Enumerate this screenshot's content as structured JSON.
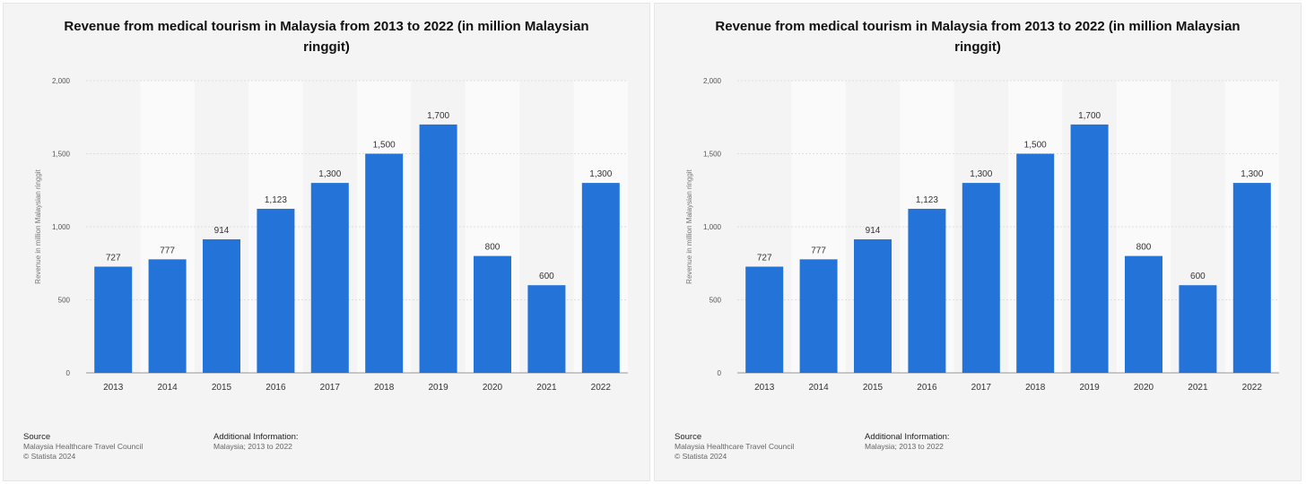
{
  "charts": [
    {
      "title": "Revenue from medical tourism in Malaysia from 2013 to 2022 (in million Malaysian ringgit)",
      "ylabel": "Revenue in million Malaysian ringgit",
      "source_header": "Source",
      "source_lines": [
        "Malaysia Healthcare Travel Council",
        "© Statista 2024"
      ],
      "additional_header": "Additional Information:",
      "additional_lines": [
        "Malaysia; 2013 to 2022"
      ]
    },
    {
      "title": "Revenue from medical tourism in Malaysia from 2013 to 2022 (in million Malaysian ringgit)",
      "ylabel": "Revenue in million Malaysian ringgit",
      "source_header": "Source",
      "source_lines": [
        "Malaysia Healthcare Travel Council",
        "© Statista 2024"
      ],
      "additional_header": "Additional Information:",
      "additional_lines": [
        "Malaysia; 2013 to 2022"
      ]
    }
  ],
  "colors": {
    "bar": "#2473d9",
    "band": "#fafafa",
    "grid": "#d6d6d6",
    "axis_text": "#555555",
    "label_text": "#333333"
  },
  "chart_data": [
    {
      "type": "bar",
      "title": "Revenue from medical tourism in Malaysia from 2013 to 2022 (in million Malaysian ringgit)",
      "xlabel": "",
      "ylabel": "Revenue in million Malaysian ringgit",
      "categories": [
        "2013",
        "2014",
        "2015",
        "2016",
        "2017",
        "2018",
        "2019",
        "2020",
        "2021",
        "2022"
      ],
      "values": [
        727,
        777,
        914,
        1123,
        1300,
        1500,
        1700,
        800,
        600,
        1300
      ],
      "value_labels": [
        "727",
        "777",
        "914",
        "1,123",
        "1,300",
        "1,500",
        "1,700",
        "800",
        "600",
        "1,300"
      ],
      "ylim": [
        0,
        2000
      ],
      "yticks": [
        0,
        500,
        1000,
        1500,
        2000
      ],
      "ytick_labels": [
        "0",
        "500",
        "1,000",
        "1,500",
        "2,000"
      ],
      "grid": true,
      "legend": "none"
    },
    {
      "type": "bar",
      "title": "Revenue from medical tourism in Malaysia from 2013 to 2022 (in million Malaysian ringgit)",
      "xlabel": "",
      "ylabel": "Revenue in million Malaysian ringgit",
      "categories": [
        "2013",
        "2014",
        "2015",
        "2016",
        "2017",
        "2018",
        "2019",
        "2020",
        "2021",
        "2022"
      ],
      "values": [
        727,
        777,
        914,
        1123,
        1300,
        1500,
        1700,
        800,
        600,
        1300
      ],
      "value_labels": [
        "727",
        "777",
        "914",
        "1,123",
        "1,300",
        "1,500",
        "1,700",
        "800",
        "600",
        "1,300"
      ],
      "ylim": [
        0,
        2000
      ],
      "yticks": [
        0,
        500,
        1000,
        1500,
        2000
      ],
      "ytick_labels": [
        "0",
        "500",
        "1,000",
        "1,500",
        "2,000"
      ],
      "grid": true,
      "legend": "none"
    }
  ]
}
